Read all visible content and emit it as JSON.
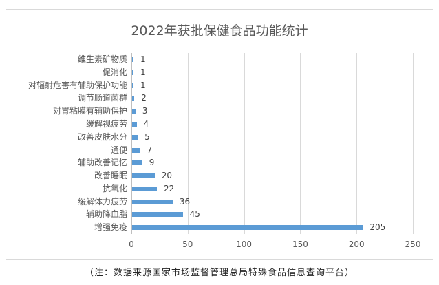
{
  "chart_data": {
    "type": "bar",
    "orientation": "horizontal",
    "title": "2022年获批保健食品功能统计",
    "categories": [
      "维生素矿物质",
      "促消化",
      "对辐射危害有辅助保护功能",
      "调节肠道菌群",
      "对胃粘膜有辅助保护",
      "缓解视疲劳",
      "改善皮肤水分",
      "通便",
      "辅助改善记忆",
      "改善睡眠",
      "抗氧化",
      "缓解体力疲劳",
      "辅助降血脂",
      "增强免疫"
    ],
    "values": [
      1,
      1,
      1,
      2,
      3,
      4,
      5,
      7,
      9,
      20,
      22,
      36,
      45,
      205
    ],
    "xlabel": "",
    "ylabel": "",
    "xlim": [
      0,
      250
    ],
    "x_ticks": [
      "0",
      "50",
      "100",
      "150",
      "200",
      "250"
    ],
    "grid": true,
    "data_labels": true,
    "legend": null,
    "bar_color": "#5b9bd5",
    "footnote": "（注：数据来源国家市场监督管理总局特殊食品信息查询平台）"
  },
  "colors": {
    "bar": "#5b9bd5",
    "gridline": "#d9d9d9",
    "text": "#595959"
  }
}
